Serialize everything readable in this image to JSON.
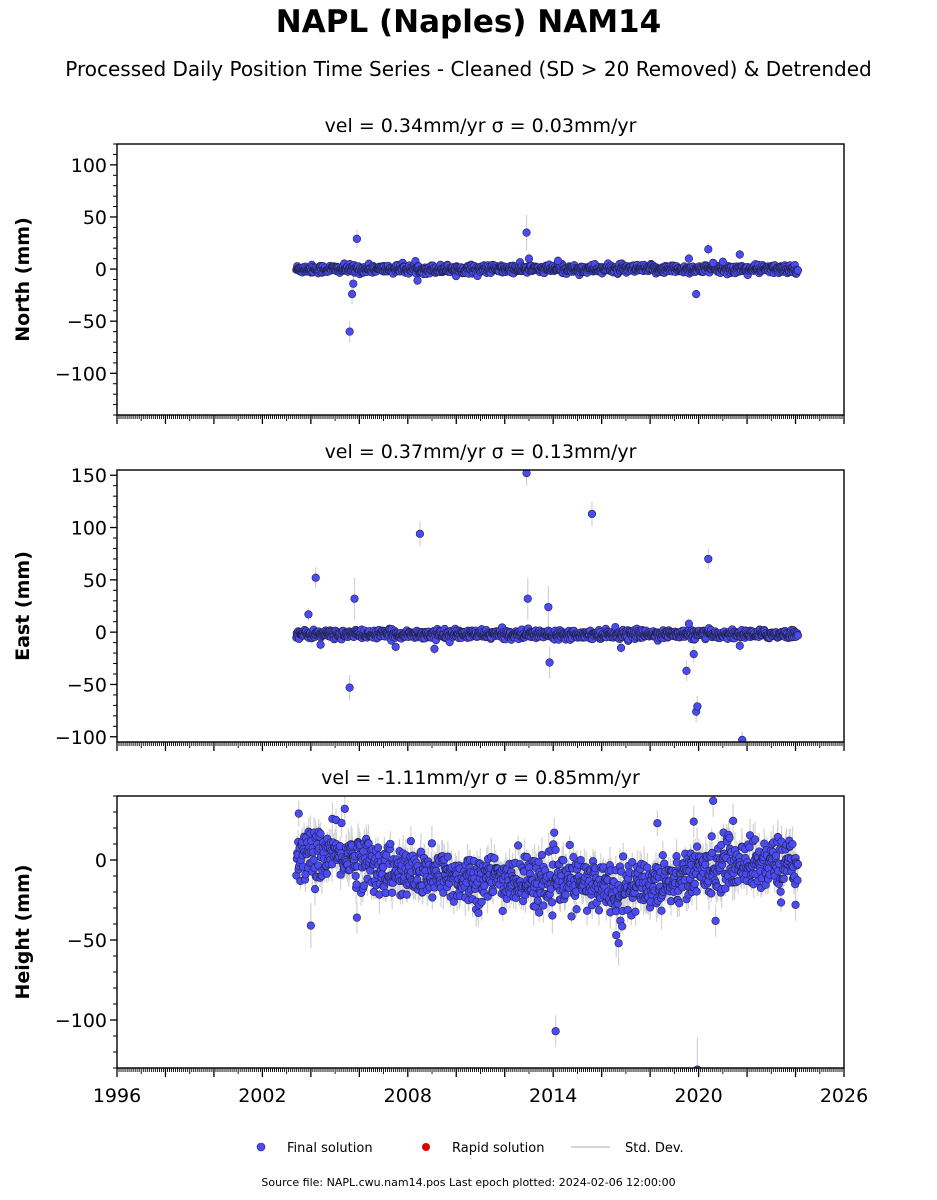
{
  "figure": {
    "title": "NAPL (Naples) NAM14",
    "subtitle": "Processed Daily Position Time Series - Cleaned (SD > 20 Removed) & Detrended",
    "source_text": "Source file: NAPL.cwu.nam14.pos  Last epoch plotted: 2024-02-06 12:00:00"
  },
  "legend": {
    "final_label": "Final solution",
    "rapid_label": "Rapid solution",
    "std_label": "Std. Dev."
  },
  "colors": {
    "final": "#4b4bf5",
    "final_edge": "#222244",
    "rapid": "#e00000",
    "std": "#c8c8c8"
  },
  "chart_data": [
    {
      "type": "scatter",
      "panel": "north",
      "title": "vel = 0.34mm/yr   σ = 0.03mm/yr",
      "ylabel": "North (mm)",
      "xlim": [
        1996,
        2026
      ],
      "ylim": [
        -140,
        120
      ],
      "yticks": [
        -100,
        -50,
        0,
        50,
        100
      ],
      "xticks": [
        1996,
        2002,
        2008,
        2014,
        2020,
        2026
      ],
      "x_range_data": [
        2003.4,
        2024.1
      ],
      "band": {
        "center": 0,
        "half_width": 3,
        "scatter": 2,
        "sd": 3
      },
      "outliers": [
        {
          "x": 2005.6,
          "y": -60,
          "err": 10
        },
        {
          "x": 2005.7,
          "y": -24,
          "err": 10
        },
        {
          "x": 2005.75,
          "y": -14,
          "err": 8
        },
        {
          "x": 2005.9,
          "y": 29,
          "err": 9
        },
        {
          "x": 2008.4,
          "y": -11,
          "err": 5
        },
        {
          "x": 2012.9,
          "y": 35,
          "err": 17
        },
        {
          "x": 2013.0,
          "y": 10,
          "err": 6
        },
        {
          "x": 2014.2,
          "y": 8,
          "err": 4
        },
        {
          "x": 2019.6,
          "y": 10,
          "err": 5
        },
        {
          "x": 2019.9,
          "y": -24,
          "err": 4
        },
        {
          "x": 2020.4,
          "y": 19,
          "err": 6
        },
        {
          "x": 2020.6,
          "y": 6,
          "err": 4
        },
        {
          "x": 2021.0,
          "y": 7,
          "err": 4
        },
        {
          "x": 2021.7,
          "y": 14,
          "err": 5
        }
      ]
    },
    {
      "type": "scatter",
      "panel": "east",
      "title": "vel = 0.37mm/yr   σ = 0.13mm/yr",
      "ylabel": "East (mm)",
      "xlim": [
        1996,
        2026
      ],
      "ylim": [
        -105,
        155
      ],
      "yticks": [
        -100,
        -50,
        0,
        50,
        100,
        150
      ],
      "xticks": [
        1996,
        2002,
        2008,
        2014,
        2020,
        2026
      ],
      "x_range_data": [
        2003.4,
        2024.1
      ],
      "band": {
        "center": -2,
        "half_width": 3,
        "scatter": 2,
        "sd": 3
      },
      "outliers": [
        {
          "x": 2003.9,
          "y": 17,
          "err": 6
        },
        {
          "x": 2004.2,
          "y": 52,
          "err": 10
        },
        {
          "x": 2004.4,
          "y": -12,
          "err": 5
        },
        {
          "x": 2005.6,
          "y": -53,
          "err": 12
        },
        {
          "x": 2005.8,
          "y": 32,
          "err": 20
        },
        {
          "x": 2007.5,
          "y": -14,
          "err": 5
        },
        {
          "x": 2008.5,
          "y": 94,
          "err": 12
        },
        {
          "x": 2009.1,
          "y": -16,
          "err": 6
        },
        {
          "x": 2012.9,
          "y": 152,
          "err": 12
        },
        {
          "x": 2012.95,
          "y": 32,
          "err": 20
        },
        {
          "x": 2013.8,
          "y": 24,
          "err": 20
        },
        {
          "x": 2013.85,
          "y": -29,
          "err": 15
        },
        {
          "x": 2015.6,
          "y": 113,
          "err": 12
        },
        {
          "x": 2016.8,
          "y": -15,
          "err": 5
        },
        {
          "x": 2019.5,
          "y": -37,
          "err": 10
        },
        {
          "x": 2019.6,
          "y": 8,
          "err": 5
        },
        {
          "x": 2019.8,
          "y": -21,
          "err": 8
        },
        {
          "x": 2019.9,
          "y": -76,
          "err": 10
        },
        {
          "x": 2019.95,
          "y": -71,
          "err": 10
        },
        {
          "x": 2020.4,
          "y": 70,
          "err": 10
        },
        {
          "x": 2021.7,
          "y": -13,
          "err": 6
        },
        {
          "x": 2021.8,
          "y": -103,
          "err": 8
        }
      ]
    },
    {
      "type": "scatter",
      "panel": "height",
      "title": "vel = -1.11mm/yr   σ = 0.85mm/yr",
      "ylabel": "Height (mm)",
      "xlim": [
        1996,
        2026
      ],
      "ylim": [
        -130,
        40
      ],
      "yticks": [
        -100,
        -50,
        0
      ],
      "xticks": [
        1996,
        2002,
        2008,
        2014,
        2020,
        2026
      ],
      "x_range_data": [
        2003.4,
        2024.1
      ],
      "trend_knots": [
        {
          "x": 2003.4,
          "y": 3
        },
        {
          "x": 2005.5,
          "y": 3
        },
        {
          "x": 2007.5,
          "y": -8
        },
        {
          "x": 2011,
          "y": -12
        },
        {
          "x": 2015,
          "y": -14
        },
        {
          "x": 2017,
          "y": -18
        },
        {
          "x": 2019,
          "y": -12
        },
        {
          "x": 2021,
          "y": -2
        },
        {
          "x": 2024.1,
          "y": -2
        }
      ],
      "band": {
        "scatter": 8,
        "sd": 8
      },
      "outliers": [
        {
          "x": 2003.5,
          "y": 29,
          "err": 8
        },
        {
          "x": 2004.0,
          "y": -41,
          "err": 14
        },
        {
          "x": 2005.4,
          "y": 32,
          "err": 10
        },
        {
          "x": 2005.9,
          "y": -36,
          "err": 10
        },
        {
          "x": 2014.1,
          "y": -107,
          "err": 10
        },
        {
          "x": 2016.6,
          "y": -47,
          "err": 14
        },
        {
          "x": 2016.7,
          "y": -52,
          "err": 14
        },
        {
          "x": 2018.3,
          "y": 23,
          "err": 8
        },
        {
          "x": 2019.8,
          "y": 24,
          "err": 10
        },
        {
          "x": 2019.95,
          "y": -131,
          "err": 20
        },
        {
          "x": 2020.6,
          "y": 37,
          "err": 10
        },
        {
          "x": 2020.7,
          "y": -38,
          "err": 10
        },
        {
          "x": 2024.0,
          "y": -28,
          "err": 10
        }
      ]
    }
  ]
}
